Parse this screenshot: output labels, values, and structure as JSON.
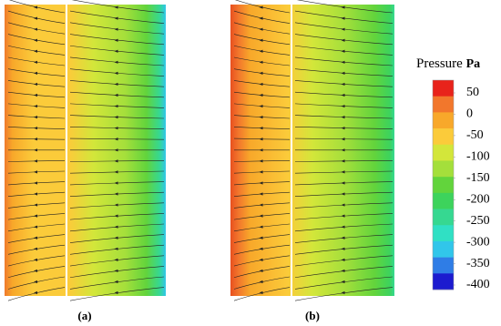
{
  "chart_data": {
    "type": "colorbar",
    "title": "Pressure",
    "unit": "Pa",
    "panels": [
      "(a)",
      "(b)"
    ],
    "ylim": [
      -400,
      50
    ],
    "yticks": [
      50,
      0,
      -50,
      -100,
      -150,
      -200,
      -250,
      -300,
      -350,
      -400
    ],
    "colors": [
      "#e8231b",
      "#f2772c",
      "#f8a82a",
      "#fbcb3a",
      "#d3e63a",
      "#a4df3b",
      "#62d43c",
      "#3dd35c",
      "#36d891",
      "#30e0c4",
      "#31c6ea",
      "#2f7de6",
      "#1c1bcf"
    ]
  }
}
